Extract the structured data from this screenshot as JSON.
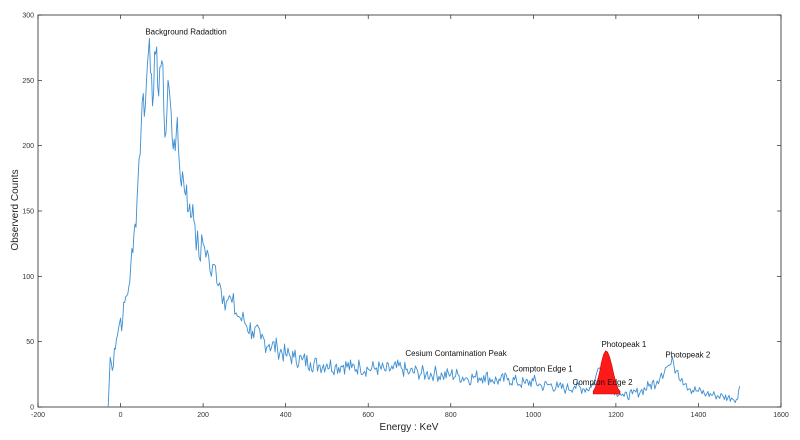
{
  "chart_data": {
    "type": "line",
    "title": "",
    "xlabel": "Energy : KeV",
    "ylabel": "Observerd Counts",
    "xlim": [
      -200,
      1600
    ],
    "ylim": [
      0,
      300
    ],
    "x_ticks": [
      -200,
      0,
      200,
      400,
      600,
      800,
      1000,
      1200,
      1400,
      1600
    ],
    "y_ticks": [
      0,
      50,
      100,
      150,
      200,
      250,
      300
    ],
    "grid": false,
    "series": [
      {
        "color": "#3d8fd1",
        "x": [
          -30,
          -25,
          -20,
          -15,
          -10,
          -5,
          0,
          5,
          10,
          15,
          20,
          25,
          30,
          35,
          40,
          45,
          50,
          55,
          60,
          65,
          70,
          75,
          80,
          85,
          90,
          95,
          100,
          105,
          110,
          115,
          120,
          125,
          130,
          135,
          140,
          145,
          150,
          155,
          160,
          165,
          170,
          175,
          180,
          190,
          200,
          210,
          220,
          230,
          240,
          250,
          260,
          270,
          280,
          290,
          300,
          320,
          340,
          360,
          380,
          400,
          420,
          440,
          460,
          480,
          500,
          520,
          540,
          560,
          580,
          600,
          620,
          640,
          660,
          680,
          700,
          720,
          740,
          760,
          780,
          800,
          820,
          840,
          860,
          880,
          900,
          920,
          940,
          960,
          980,
          1000,
          1020,
          1040,
          1060,
          1080,
          1100,
          1120,
          1140,
          1150,
          1160,
          1170,
          1175,
          1180,
          1185,
          1190,
          1200,
          1210,
          1220,
          1240,
          1260,
          1280,
          1300,
          1310,
          1320,
          1330,
          1340,
          1350,
          1360,
          1370,
          1380,
          1400,
          1420,
          1440,
          1460,
          1480,
          1495,
          1500
        ],
        "y": [
          0,
          38,
          28,
          45,
          52,
          60,
          68,
          65,
          80,
          85,
          92,
          110,
          118,
          140,
          160,
          190,
          215,
          240,
          230,
          262,
          282,
          255,
          240,
          270,
          245,
          260,
          265,
          225,
          210,
          250,
          235,
          205,
          205,
          210,
          200,
          175,
          180,
          165,
          170,
          150,
          145,
          155,
          140,
          115,
          125,
          120,
          100,
          108,
          95,
          85,
          82,
          80,
          72,
          68,
          65,
          58,
          52,
          48,
          45,
          40,
          38,
          36,
          34,
          32,
          33,
          31,
          32,
          30,
          31,
          29,
          30,
          28,
          29,
          30,
          26,
          27,
          25,
          26,
          24,
          25,
          24,
          22,
          23,
          24,
          21,
          20,
          22,
          19,
          18,
          20,
          16,
          17,
          15,
          14,
          16,
          14,
          15,
          22,
          30,
          26,
          20,
          28,
          22,
          14,
          12,
          10,
          8,
          10,
          12,
          16,
          20,
          26,
          30,
          32,
          33,
          28,
          22,
          18,
          14,
          12,
          10,
          9,
          8,
          7,
          6,
          16
        ]
      }
    ],
    "highlight": {
      "color": "#ff1a1a",
      "x": [
        1145,
        1150,
        1155,
        1160,
        1165,
        1170,
        1175,
        1180,
        1185,
        1190,
        1195,
        1200,
        1205,
        1210
      ],
      "y": [
        12,
        15,
        20,
        26,
        34,
        40,
        43,
        42,
        38,
        32,
        25,
        19,
        14,
        12
      ]
    },
    "annotations": [
      {
        "text": "Background Radadtion",
        "x": 60,
        "y": 285
      },
      {
        "text": "Cesium Contamination Peak",
        "x": 690,
        "y": 39
      },
      {
        "text": "Compton Edge 1",
        "x": 950,
        "y": 27
      },
      {
        "text": "Compton Edge 2",
        "x": 1095,
        "y": 17
      },
      {
        "text": "Photopeak 1",
        "x": 1165,
        "y": 46
      },
      {
        "text": "Photopeak 2",
        "x": 1320,
        "y": 38
      }
    ]
  }
}
